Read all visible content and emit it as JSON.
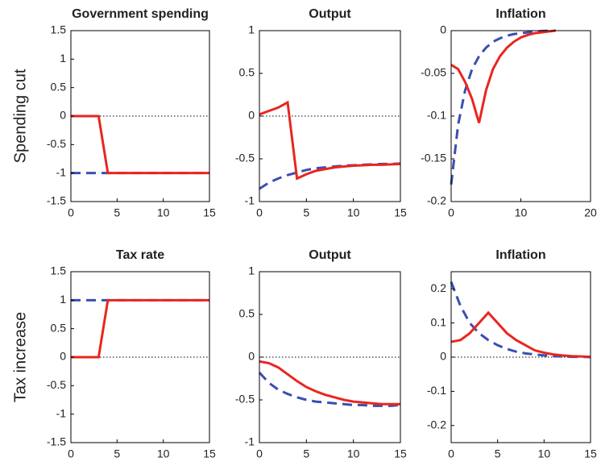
{
  "chart_data": [
    {
      "type": "line",
      "title": "Government spending",
      "ylabel": "Spending cut",
      "x": [
        0,
        1,
        2,
        3,
        4,
        5,
        6,
        7,
        8,
        9,
        10,
        11,
        12,
        13,
        14,
        15
      ],
      "xlim": [
        0,
        15
      ],
      "xticks": [
        0,
        5,
        10,
        15
      ],
      "ylim": [
        -1.5,
        1.5
      ],
      "yticks": [
        -1.5,
        -1,
        -0.5,
        0,
        0.5,
        1,
        1.5
      ],
      "zero_line": true,
      "series": [
        {
          "color": "#3a4fb0",
          "style": "dashed",
          "values": [
            -1,
            -1,
            -1,
            -1,
            -1,
            -1,
            -1,
            -1,
            -1,
            -1,
            -1,
            -1,
            -1,
            -1,
            -1,
            -1
          ]
        },
        {
          "color": "#e8261f",
          "style": "solid",
          "values": [
            0,
            0,
            0,
            0,
            -1,
            -1,
            -1,
            -1,
            -1,
            -1,
            -1,
            -1,
            -1,
            -1,
            -1,
            -1
          ]
        }
      ]
    },
    {
      "type": "line",
      "title": "Output",
      "x": [
        0,
        1,
        2,
        3,
        4,
        5,
        6,
        7,
        8,
        9,
        10,
        11,
        12,
        13,
        14,
        15
      ],
      "xlim": [
        0,
        15
      ],
      "xticks": [
        0,
        5,
        10,
        15
      ],
      "ylim": [
        -1,
        1
      ],
      "yticks": [
        -1,
        -0.5,
        0,
        0.5,
        1
      ],
      "zero_line": true,
      "series": [
        {
          "color": "#3a4fb0",
          "style": "dashed",
          "values": [
            -0.85,
            -0.78,
            -0.73,
            -0.69,
            -0.66,
            -0.63,
            -0.61,
            -0.6,
            -0.59,
            -0.58,
            -0.575,
            -0.57,
            -0.565,
            -0.56,
            -0.56,
            -0.555
          ]
        },
        {
          "color": "#e8261f",
          "style": "solid",
          "values": [
            0.02,
            0.06,
            0.1,
            0.16,
            -0.73,
            -0.68,
            -0.64,
            -0.62,
            -0.6,
            -0.59,
            -0.58,
            -0.575,
            -0.57,
            -0.57,
            -0.565,
            -0.56
          ]
        }
      ]
    },
    {
      "type": "line",
      "title": "Inflation",
      "x": [
        0,
        1,
        2,
        3,
        4,
        5,
        6,
        7,
        8,
        9,
        10,
        11,
        12,
        13,
        14,
        15
      ],
      "xlim": [
        0,
        20
      ],
      "xticks": [
        0,
        10,
        20
      ],
      "ylim": [
        -0.2,
        0
      ],
      "yticks": [
        -0.2,
        -0.15,
        -0.1,
        -0.05,
        0
      ],
      "zero_line": true,
      "series": [
        {
          "color": "#3a4fb0",
          "style": "dashed",
          "values": [
            -0.18,
            -0.11,
            -0.07,
            -0.045,
            -0.03,
            -0.02,
            -0.013,
            -0.009,
            -0.006,
            -0.004,
            -0.003,
            -0.002,
            -0.001,
            -0.0005,
            0,
            0
          ]
        },
        {
          "color": "#e8261f",
          "style": "solid",
          "values": [
            -0.04,
            -0.045,
            -0.06,
            -0.08,
            -0.108,
            -0.07,
            -0.045,
            -0.03,
            -0.02,
            -0.013,
            -0.008,
            -0.005,
            -0.003,
            -0.002,
            -0.001,
            0
          ]
        }
      ]
    },
    {
      "type": "line",
      "title": "Tax rate",
      "ylabel": "Tax increase",
      "x": [
        0,
        1,
        2,
        3,
        4,
        5,
        6,
        7,
        8,
        9,
        10,
        11,
        12,
        13,
        14,
        15
      ],
      "xlim": [
        0,
        15
      ],
      "xticks": [
        0,
        5,
        10,
        15
      ],
      "ylim": [
        -1.5,
        1.5
      ],
      "yticks": [
        -1.5,
        -1,
        -0.5,
        0,
        0.5,
        1,
        1.5
      ],
      "zero_line": true,
      "series": [
        {
          "color": "#3a4fb0",
          "style": "dashed",
          "values": [
            1,
            1,
            1,
            1,
            1,
            1,
            1,
            1,
            1,
            1,
            1,
            1,
            1,
            1,
            1,
            1
          ]
        },
        {
          "color": "#e8261f",
          "style": "solid",
          "values": [
            0,
            0,
            0,
            0,
            1,
            1,
            1,
            1,
            1,
            1,
            1,
            1,
            1,
            1,
            1,
            1
          ]
        }
      ]
    },
    {
      "type": "line",
      "title": "Output",
      "x": [
        0,
        1,
        2,
        3,
        4,
        5,
        6,
        7,
        8,
        9,
        10,
        11,
        12,
        13,
        14,
        15
      ],
      "xlim": [
        0,
        15
      ],
      "xticks": [
        0,
        5,
        10,
        15
      ],
      "ylim": [
        -1,
        1
      ],
      "yticks": [
        -1,
        -0.5,
        0,
        0.5,
        1
      ],
      "zero_line": true,
      "series": [
        {
          "color": "#3a4fb0",
          "style": "dashed",
          "values": [
            -0.18,
            -0.3,
            -0.38,
            -0.43,
            -0.47,
            -0.5,
            -0.52,
            -0.53,
            -0.54,
            -0.55,
            -0.56,
            -0.56,
            -0.57,
            -0.57,
            -0.57,
            -0.56
          ]
        },
        {
          "color": "#e8261f",
          "style": "solid",
          "values": [
            -0.05,
            -0.07,
            -0.12,
            -0.2,
            -0.28,
            -0.35,
            -0.4,
            -0.44,
            -0.47,
            -0.5,
            -0.52,
            -0.53,
            -0.54,
            -0.55,
            -0.55,
            -0.55
          ]
        }
      ]
    },
    {
      "type": "line",
      "title": "Inflation",
      "x": [
        0,
        1,
        2,
        3,
        4,
        5,
        6,
        7,
        8,
        9,
        10,
        11,
        12,
        13,
        14,
        15
      ],
      "xlim": [
        0,
        15
      ],
      "xticks": [
        0,
        5,
        10,
        15
      ],
      "ylim": [
        -0.25,
        0.25
      ],
      "yticks": [
        -0.2,
        -0.1,
        0,
        0.1,
        0.2
      ],
      "zero_line": true,
      "series": [
        {
          "color": "#3a4fb0",
          "style": "dashed",
          "values": [
            0.22,
            0.15,
            0.1,
            0.07,
            0.05,
            0.035,
            0.024,
            0.016,
            0.011,
            0.008,
            0.005,
            0.003,
            0.002,
            0.001,
            0.001,
            0
          ]
        },
        {
          "color": "#e8261f",
          "style": "solid",
          "values": [
            0.045,
            0.05,
            0.07,
            0.1,
            0.13,
            0.1,
            0.07,
            0.05,
            0.035,
            0.02,
            0.013,
            0.008,
            0.005,
            0.003,
            0.002,
            0.001
          ]
        }
      ]
    }
  ]
}
